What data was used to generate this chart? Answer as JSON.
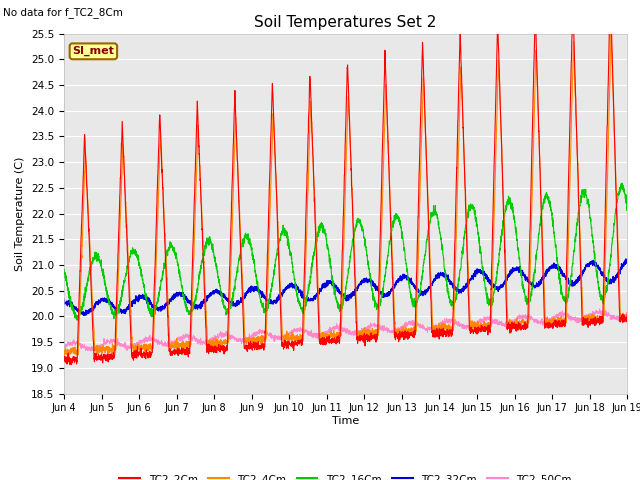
{
  "title": "Soil Temperatures Set 2",
  "subtitle": "No data for f_TC2_8Cm",
  "xlabel": "Time",
  "ylabel": "Soil Temperature (C)",
  "ylim": [
    18.5,
    25.5
  ],
  "xlim_days": [
    4,
    19
  ],
  "bg_color": "#e8e8e8",
  "series_colors": {
    "TC2_2Cm": "#ff0000",
    "TC2_4Cm": "#ff8800",
    "TC2_16Cm": "#00cc00",
    "TC2_32Cm": "#0000dd",
    "TC2_50Cm": "#ff88cc"
  },
  "legend_label": "SI_met",
  "legend_box_color": "#ffff99",
  "legend_box_border": "#996600",
  "x_tick_labels": [
    "Jun 4",
    "Jun 5",
    "Jun 6",
    "Jun 7",
    "Jun 8",
    "Jun 9",
    "Jun 10",
    "Jun 11",
    "Jun 12",
    "Jun 13",
    "Jun 14",
    "Jun 15",
    "Jun 16",
    "Jun 17",
    "Jun 18",
    "Jun 19"
  ],
  "x_tick_positions": [
    4,
    5,
    6,
    7,
    8,
    9,
    10,
    11,
    12,
    13,
    14,
    15,
    16,
    17,
    18,
    19
  ],
  "y_ticks": [
    18.5,
    19.0,
    19.5,
    20.0,
    20.5,
    21.0,
    21.5,
    22.0,
    22.5,
    23.0,
    23.5,
    24.0,
    24.5,
    25.0,
    25.5
  ]
}
